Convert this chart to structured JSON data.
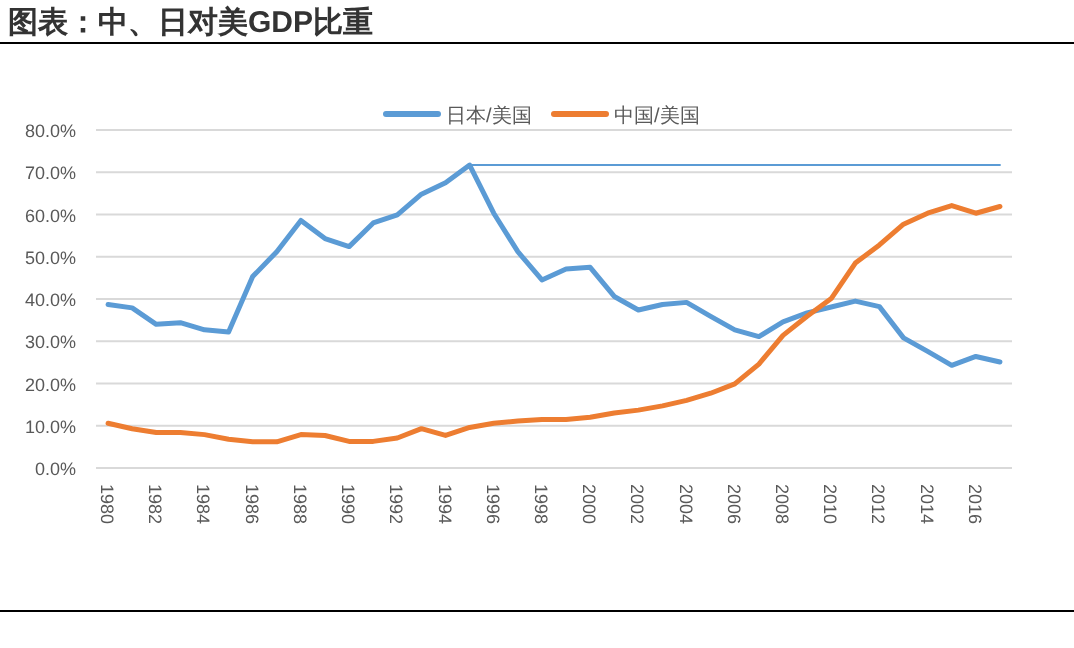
{
  "chart_data": {
    "type": "line",
    "title": "图表：中、日对美GDP比重",
    "categories": [
      "1980",
      null,
      "1982",
      null,
      "1984",
      null,
      "1986",
      null,
      "1988",
      null,
      "1990",
      null,
      "1992",
      null,
      "1994",
      null,
      "1996",
      null,
      "1998",
      null,
      "2000",
      null,
      "2002",
      null,
      "2004",
      null,
      "2006",
      null,
      "2008",
      null,
      "2010",
      null,
      "2012",
      null,
      "2014",
      null,
      "2016",
      null
    ],
    "series": [
      {
        "name": "日本/美国",
        "color": "#5b9bd5",
        "values": [
          38.7,
          37.9,
          34.0,
          34.4,
          32.7,
          32.2,
          45.3,
          51.2,
          58.6,
          54.3,
          52.4,
          58.0,
          59.9,
          64.8,
          67.5,
          71.7,
          60.3,
          51.2,
          44.5,
          47.1,
          47.5,
          40.6,
          37.4,
          38.7,
          39.2,
          35.9,
          32.7,
          31.1,
          34.6,
          36.7,
          38.1,
          39.5,
          38.2,
          30.8,
          27.6,
          24.3,
          26.4,
          25.1
        ]
      },
      {
        "name": "中国/美国",
        "color": "#ed7d31",
        "values": [
          10.6,
          9.3,
          8.4,
          8.4,
          7.9,
          6.8,
          6.2,
          6.2,
          7.9,
          7.7,
          6.3,
          6.3,
          7.1,
          9.3,
          7.7,
          9.6,
          10.6,
          11.1,
          11.5,
          11.5,
          12.0,
          13.0,
          13.7,
          14.7,
          16.0,
          17.7,
          19.9,
          24.6,
          31.4,
          35.9,
          40.1,
          48.5,
          52.8,
          57.7,
          60.3,
          62.1,
          60.3,
          61.9
        ]
      },
      {
        "color": "#5b9bd5",
        "values": [
          null,
          null,
          null,
          null,
          null,
          null,
          null,
          null,
          null,
          null,
          null,
          null,
          null,
          null,
          null,
          71.7,
          71.7,
          71.7,
          71.7,
          71.7,
          71.7,
          71.7,
          71.7,
          71.7,
          71.7,
          71.7,
          71.7,
          71.7,
          71.7,
          71.7,
          71.7,
          71.7,
          71.7,
          71.7,
          71.7,
          71.7,
          71.7,
          71.7
        ]
      }
    ],
    "ylim": [
      0,
      80
    ],
    "yticks": [
      {
        "value": 0,
        "label": "0.0%"
      },
      {
        "value": 10,
        "label": "10.0%"
      },
      {
        "value": 20,
        "label": "20.0%"
      },
      {
        "value": 30,
        "label": "30.0%"
      },
      {
        "value": 40,
        "label": "40.0%"
      },
      {
        "value": 50,
        "label": "50.0%"
      },
      {
        "value": 60,
        "label": "60.0%"
      },
      {
        "value": 70,
        "label": "70.0%"
      },
      {
        "value": 80,
        "label": "80.0%"
      }
    ],
    "grid": "y",
    "legend": "top",
    "line_style": "solid"
  }
}
